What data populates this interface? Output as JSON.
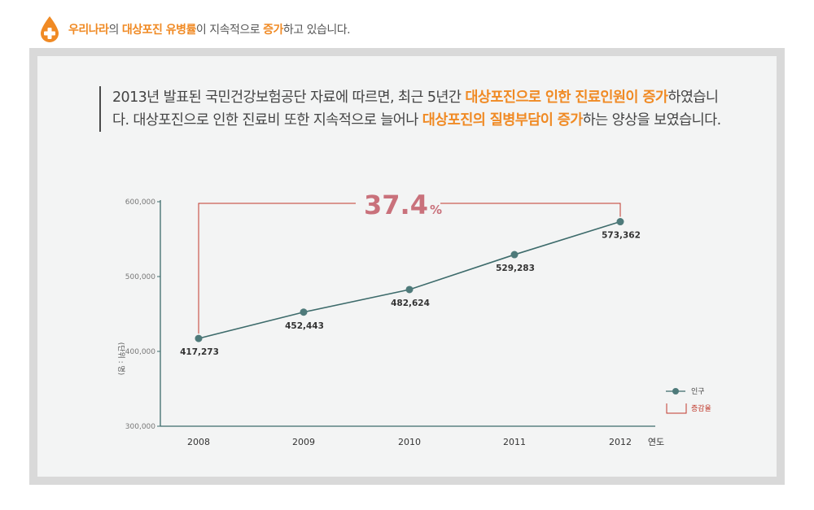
{
  "header": {
    "parts": [
      {
        "text": "우리나라",
        "hl": true
      },
      {
        "text": "의 ",
        "hl": false
      },
      {
        "text": "대상포진 유병률",
        "hl": true
      },
      {
        "text": "이 지속적으로 ",
        "hl": false
      },
      {
        "text": "증가",
        "hl": true
      },
      {
        "text": "하고 있습니다.",
        "hl": false
      }
    ]
  },
  "intro": {
    "parts": [
      {
        "text": "2013년 발표된 국민건강보험공단 자료에 따르면, 최근 5년간 ",
        "hl": false
      },
      {
        "text": "대상포진으로 인한 진료인원이 증가",
        "hl": true
      },
      {
        "text": "하였습니다. 대상포진으로 인한 진료비 또한 지속적으로 늘어나 ",
        "hl": false
      },
      {
        "text": "대상포진의 질병부담이 증가",
        "hl": true
      },
      {
        "text": "하는 양상을 보였습니다.",
        "hl": false
      }
    ]
  },
  "colors": {
    "accent_orange": "#f08a24",
    "line": "#3d6b6b",
    "marker": "#4e7a7a",
    "bracket": "#c0392b",
    "pct_text": "#c9717b"
  },
  "chart_data": {
    "type": "line",
    "x": [
      "2008",
      "2009",
      "2010",
      "2011",
      "2012"
    ],
    "series": [
      {
        "name": "인구",
        "values": [
          417273,
          452443,
          482624,
          529283,
          573362
        ]
      }
    ],
    "data_labels": [
      "417,273",
      "452,443",
      "482,624",
      "529,283",
      "573,362"
    ],
    "ylim": [
      300000,
      600000
    ],
    "yticks": [
      300000,
      400000,
      500000,
      600000
    ],
    "ytick_labels": [
      "300,000",
      "400,000",
      "500,000",
      "600,000"
    ],
    "xlabel": "연도",
    "ylabel": "(단위 : 명)",
    "annotation": {
      "value": "37.4",
      "unit": "%",
      "from": "2008",
      "to": "2012"
    },
    "legend": {
      "placement": "bottom-right",
      "items": [
        {
          "label": "인구",
          "kind": "line"
        },
        {
          "label": "증감율",
          "kind": "bracket"
        }
      ]
    },
    "grid": false
  }
}
